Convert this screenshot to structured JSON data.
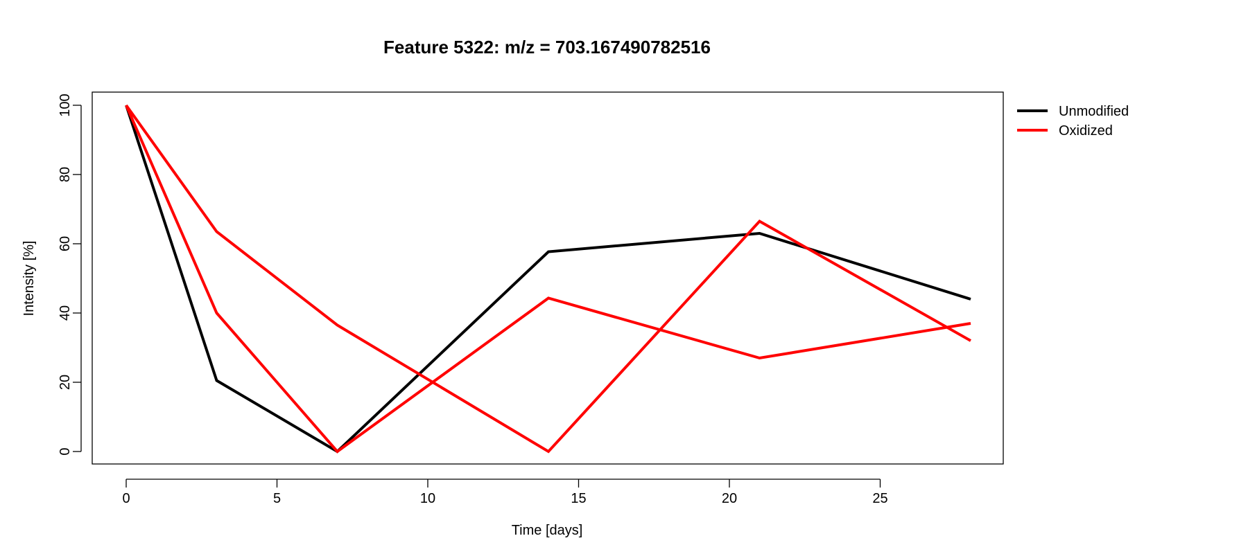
{
  "chart_data": {
    "type": "line",
    "title": "Feature 5322: m/z = 703.167490782516",
    "xlabel": "Time [days]",
    "ylabel": "Intensity [%]",
    "xlim": [
      0,
      28
    ],
    "ylim": [
      0,
      100
    ],
    "x_ticks": [
      0,
      5,
      10,
      15,
      20,
      25
    ],
    "y_ticks": [
      0,
      20,
      40,
      60,
      80,
      100
    ],
    "grid": false,
    "legend_position": "top-right, outside plot",
    "legend": [
      {
        "label": "Unmodified",
        "color": "#000000"
      },
      {
        "label": "Oxidized",
        "color": "#ff0000"
      }
    ],
    "series": [
      {
        "group": "Unmodified",
        "color": "#000000",
        "x": [
          0,
          3,
          7,
          14,
          21,
          28
        ],
        "y": [
          100,
          20.5,
          0,
          57.7,
          63,
          44
        ]
      },
      {
        "group": "Oxidized",
        "color": "#ff0000",
        "x": [
          0,
          3,
          7,
          14,
          21,
          28
        ],
        "y": [
          100,
          63.5,
          36.5,
          0,
          66.5,
          32
        ]
      },
      {
        "group": "Oxidized",
        "color": "#ff0000",
        "x": [
          0,
          3,
          7,
          14,
          21,
          28
        ],
        "y": [
          100,
          40,
          0,
          44.3,
          27,
          37
        ]
      }
    ]
  }
}
